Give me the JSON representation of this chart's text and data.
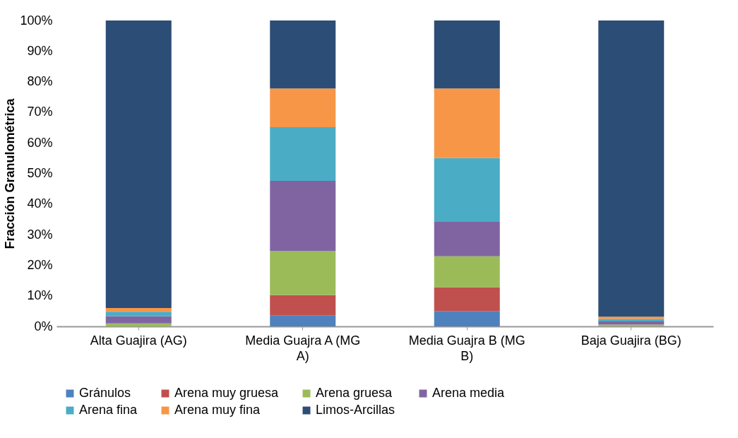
{
  "chart_data": {
    "type": "bar",
    "stacked": true,
    "ylabel": "Fracción Granulométrica",
    "categories": [
      "Alta Guajira (AG)",
      "Media Guajra A (MG A)",
      "Media Guajra B (MG B)",
      "Baja Guajira (BG)"
    ],
    "ylim": [
      0,
      100
    ],
    "yticks": [
      {
        "value": 0,
        "label": "0%"
      },
      {
        "value": 10,
        "label": "10%"
      },
      {
        "value": 20,
        "label": "20%"
      },
      {
        "value": 30,
        "label": "30%"
      },
      {
        "value": 40,
        "label": "40%"
      },
      {
        "value": 50,
        "label": "50%"
      },
      {
        "value": 60,
        "label": "60%"
      },
      {
        "value": 70,
        "label": "70%"
      },
      {
        "value": 80,
        "label": "80%"
      },
      {
        "value": 90,
        "label": "90%"
      },
      {
        "value": 100,
        "label": "100%"
      }
    ],
    "grid": false,
    "legend": "bottom",
    "series": [
      {
        "name": "Gránulos",
        "color": "#4f81bd",
        "values": [
          0,
          3.5,
          5.0,
          0
        ]
      },
      {
        "name": "Arena muy gruesa",
        "color": "#c0504d",
        "values": [
          0,
          6.7,
          7.8,
          0
        ]
      },
      {
        "name": "Arena gruesa",
        "color": "#9bbb59",
        "values": [
          1.0,
          14.4,
          10.1,
          0.6
        ]
      },
      {
        "name": "Arena media",
        "color": "#8064a2",
        "values": [
          2.3,
          23.0,
          11.3,
          1.0
        ]
      },
      {
        "name": "Arena fina",
        "color": "#4bacc6",
        "values": [
          1.5,
          17.5,
          20.8,
          0.8
        ]
      },
      {
        "name": "Arena muy fina",
        "color": "#f79646",
        "values": [
          1.2,
          12.7,
          22.8,
          0.8
        ]
      },
      {
        "name": "Limos-Arcillas",
        "color": "#2c4d75",
        "values": [
          94.0,
          22.2,
          22.2,
          96.8
        ]
      }
    ]
  }
}
